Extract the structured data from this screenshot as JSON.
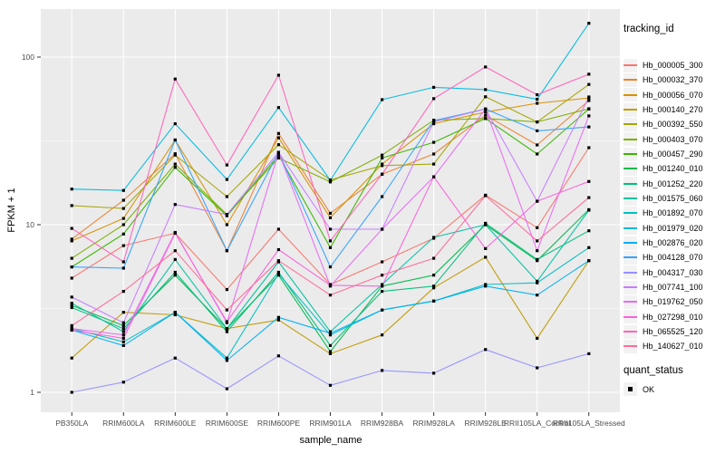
{
  "style": {
    "background": "#FFFFFF",
    "panel_bg": "#EBEBEB",
    "grid_color": "#FFFFFF",
    "tick_color": "#333333",
    "axis_text_color": "#4D4D4D",
    "axis_title_color": "#000000",
    "point_color": "#000000",
    "legend_key_bg": "#F2F2F2"
  },
  "chart_data": {
    "type": "line",
    "title": "",
    "xlabel": "sample_name",
    "ylabel": "FPKM + 1",
    "y_scale": "log10",
    "y_ticks": [
      1,
      10,
      100
    ],
    "y_minor": [
      3.162,
      31.62
    ],
    "ylim": [
      0.76,
      193
    ],
    "grid": true,
    "legend_position": "right",
    "point_marker": "square",
    "categories": [
      "PB350LA",
      "RRIM600LA",
      "RRIM600LE",
      "RRIM600SE",
      "RRIM600PE",
      "RRIM901LA",
      "RRIM928BA",
      "RRIM928LA",
      "RRIM928LE",
      "RRII105LA_Control",
      "RRII105LA_Stressed"
    ],
    "series": [
      {
        "name": "Hb_000005_300",
        "color": "#F8766D",
        "values": [
          4.8,
          7.5,
          8.9,
          4.1,
          9.4,
          4.4,
          6.0,
          8.3,
          15.0,
          9.6,
          28.8
        ]
      },
      {
        "name": "Hb_000032_370",
        "color": "#EA8331",
        "values": [
          8.2,
          14.0,
          26.5,
          7.0,
          35.0,
          11.7,
          20.0,
          26.4,
          45.0,
          29.9,
          55.0
        ]
      },
      {
        "name": "Hb_000056_070",
        "color": "#D89000",
        "values": [
          8.0,
          10.9,
          32.0,
          10.0,
          33.0,
          11.0,
          23.0,
          40.0,
          47.0,
          53.0,
          57.0
        ]
      },
      {
        "name": "Hb_000140_270",
        "color": "#C09B00",
        "values": [
          1.6,
          3.0,
          2.9,
          2.4,
          2.7,
          1.7,
          2.2,
          4.2,
          6.4,
          2.1,
          6.1
        ]
      },
      {
        "name": "Hb_000392_550",
        "color": "#A3A500",
        "values": [
          13.0,
          12.5,
          26.0,
          14.7,
          30.0,
          18.5,
          22.5,
          23.0,
          58.0,
          41.0,
          68.7
        ]
      },
      {
        "name": "Hb_000403_070",
        "color": "#7CAE00",
        "values": [
          6.3,
          10.0,
          23.0,
          11.5,
          25.0,
          18.0,
          26.0,
          42.0,
          43.0,
          41.0,
          49.2
        ]
      },
      {
        "name": "Hb_000457_290",
        "color": "#39B600",
        "values": [
          5.6,
          8.8,
          22.0,
          11.3,
          26.0,
          7.3,
          25.0,
          31.0,
          43.0,
          26.4,
          49.0
        ]
      },
      {
        "name": "Hb_001240_010",
        "color": "#00BB4E",
        "values": [
          3.3,
          2.5,
          5.0,
          2.4,
          5.0,
          1.75,
          4.3,
          5.0,
          10.0,
          6.1,
          12.3
        ]
      },
      {
        "name": "Hb_001252_220",
        "color": "#00BF7D",
        "values": [
          3.2,
          2.4,
          5.2,
          2.3,
          5.2,
          1.9,
          4.0,
          4.3,
          10.2,
          6.2,
          9.2
        ]
      },
      {
        "name": "Hb_001575_060",
        "color": "#00C1A3",
        "values": [
          3.4,
          2.3,
          6.2,
          2.4,
          6.0,
          2.3,
          4.4,
          8.4,
          10.0,
          4.6,
          12.2
        ]
      },
      {
        "name": "Hb_001892_070",
        "color": "#00BFC4",
        "values": [
          2.4,
          2.0,
          3.0,
          1.6,
          5.1,
          2.2,
          3.1,
          3.5,
          4.4,
          4.5,
          7.3
        ]
      },
      {
        "name": "Hb_001979_020",
        "color": "#00BAE0",
        "values": [
          16.3,
          16.0,
          40.0,
          18.6,
          50.0,
          18.4,
          55.7,
          66.0,
          64.0,
          56.0,
          159.0
        ]
      },
      {
        "name": "Hb_002876_020",
        "color": "#00B0F6",
        "values": [
          2.35,
          1.9,
          3.0,
          1.55,
          2.8,
          2.25,
          3.1,
          3.5,
          4.3,
          3.8,
          6.1
        ]
      },
      {
        "name": "Hb_004128_070",
        "color": "#35A2FF",
        "values": [
          5.6,
          5.5,
          32.0,
          7.0,
          27.0,
          5.6,
          14.7,
          41.8,
          49.0,
          36.3,
          38.3
        ]
      },
      {
        "name": "Hb_004317_030",
        "color": "#9590FF",
        "values": [
          1.0,
          1.15,
          1.6,
          1.05,
          1.65,
          1.1,
          1.35,
          1.3,
          1.8,
          1.4,
          1.7
        ]
      },
      {
        "name": "Hb_007741_100",
        "color": "#C77CFF",
        "values": [
          3.7,
          2.6,
          13.2,
          11.5,
          27.0,
          9.4,
          9.4,
          41.0,
          49.0,
          13.8,
          57.8
        ]
      },
      {
        "name": "Hb_019762_050",
        "color": "#E76BF3",
        "values": [
          2.4,
          2.2,
          9.0,
          2.6,
          27.0,
          4.3,
          9.4,
          19.3,
          49.0,
          7.0,
          44.6
        ]
      },
      {
        "name": "Hb_027298_010",
        "color": "#FA62DB",
        "values": [
          2.35,
          2.1,
          8.9,
          2.64,
          7.1,
          4.35,
          4.3,
          19.3,
          7.2,
          13.8,
          18.1
        ]
      },
      {
        "name": "Hb_065525_120",
        "color": "#FF62BC",
        "values": [
          9.5,
          6.0,
          74.0,
          22.7,
          78.0,
          8.0,
          20.0,
          56.5,
          87.3,
          59.6,
          79.0
        ]
      },
      {
        "name": "Hb_140627_010",
        "color": "#FF6A98",
        "values": [
          2.5,
          4.0,
          7.0,
          3.1,
          6.1,
          3.8,
          5.0,
          6.3,
          14.9,
          8.0,
          14.5
        ]
      }
    ],
    "legend": {
      "title": "tracking_id"
    },
    "legend2": {
      "title": "quant_status",
      "items": [
        {
          "label": "OK",
          "marker": "square",
          "color": "#000000"
        }
      ]
    }
  }
}
